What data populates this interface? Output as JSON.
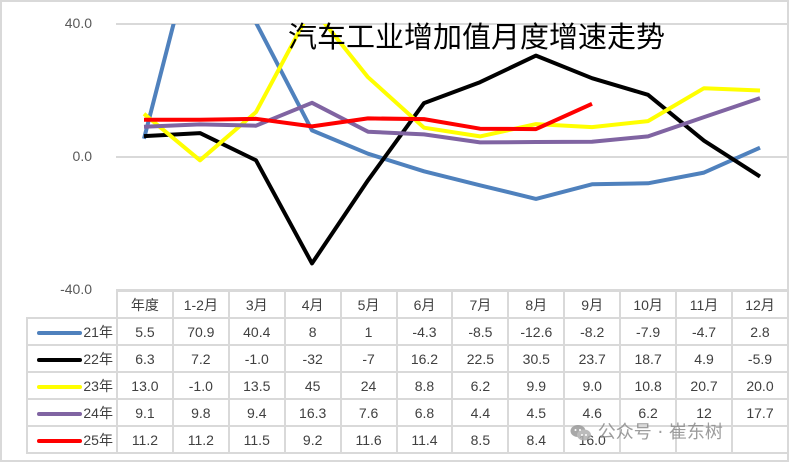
{
  "chart_data": {
    "type": "line",
    "title": "汽车工业增加值月度增速走势",
    "xlabel": "",
    "ylabel": "",
    "ylim": [
      -40,
      40
    ],
    "yticks": [
      "40.0",
      "0.0",
      "-40.0"
    ],
    "grid": true,
    "legend_position": "table-left",
    "categories": [
      "年度",
      "1-2月",
      "3月",
      "4月",
      "5月",
      "6月",
      "7月",
      "8月",
      "9月",
      "10月",
      "11月",
      "12月"
    ],
    "series": [
      {
        "name": "21年",
        "color": "#4f81bd",
        "values": [
          5.5,
          70.9,
          40.4,
          8,
          1,
          -4.3,
          -8.5,
          -12.6,
          -8.2,
          -7.9,
          -4.7,
          2.8
        ],
        "labels": [
          "5.5",
          "70.9",
          "40.4",
          "8",
          "1",
          "-4.3",
          "-8.5",
          "-12.6",
          "-8.2",
          "-7.9",
          "-4.7",
          "2.8"
        ]
      },
      {
        "name": "22年",
        "color": "#000000",
        "values": [
          6.3,
          7.2,
          -1.0,
          -32,
          -7,
          16.2,
          22.5,
          30.5,
          23.7,
          18.7,
          4.9,
          -5.9
        ],
        "labels": [
          "6.3",
          "7.2",
          "-1.0",
          "-32",
          "-7",
          "16.2",
          "22.5",
          "30.5",
          "23.7",
          "18.7",
          "4.9",
          "-5.9"
        ]
      },
      {
        "name": "23年",
        "color": "#ffff00",
        "values": [
          13.0,
          -1.0,
          13.5,
          45,
          24,
          8.8,
          6.2,
          9.9,
          9.0,
          10.8,
          20.7,
          20.0
        ],
        "labels": [
          "13.0",
          "-1.0",
          "13.5",
          "45",
          "24",
          "8.8",
          "6.2",
          "9.9",
          "9.0",
          "10.8",
          "20.7",
          "20.0"
        ]
      },
      {
        "name": "24年",
        "color": "#8064a2",
        "values": [
          9.1,
          9.8,
          9.4,
          16.3,
          7.6,
          6.8,
          4.4,
          4.5,
          4.6,
          6.2,
          12,
          17.7
        ],
        "labels": [
          "9.1",
          "9.8",
          "9.4",
          "16.3",
          "7.6",
          "6.8",
          "4.4",
          "4.5",
          "4.6",
          "6.2",
          "12",
          "17.7"
        ]
      },
      {
        "name": "25年",
        "color": "#ff0000",
        "values": [
          11.2,
          11.2,
          11.5,
          9.2,
          11.6,
          11.4,
          8.5,
          8.4,
          16.0,
          null,
          null,
          null
        ],
        "labels": [
          "11.2",
          "11.2",
          "11.5",
          "9.2",
          "11.6",
          "11.4",
          "8.5",
          "8.4",
          "16.0",
          "",
          "",
          ""
        ]
      }
    ]
  },
  "watermark": "公众号 · 崔东树"
}
